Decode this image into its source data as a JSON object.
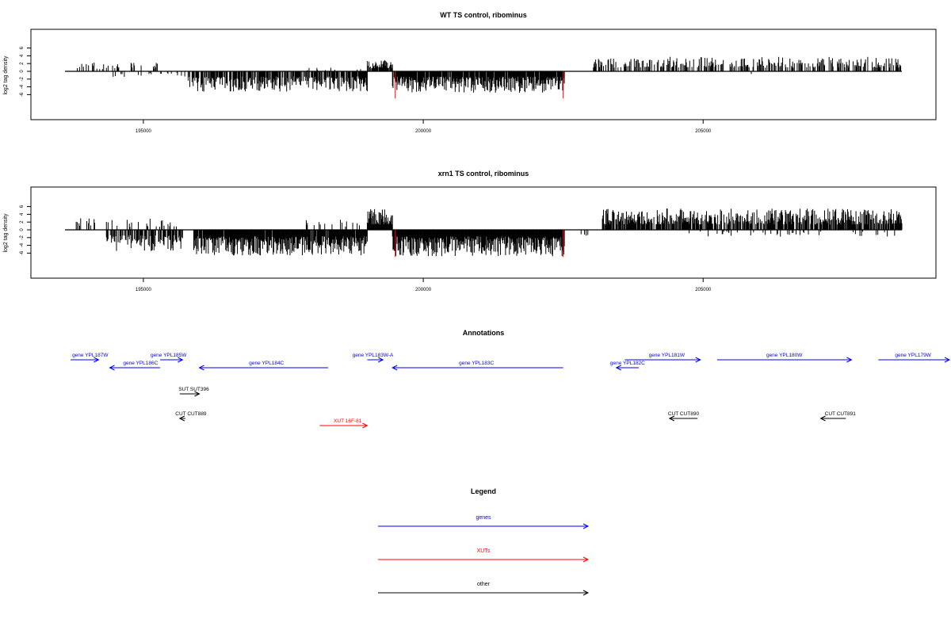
{
  "chart_data": [
    {
      "type": "bar",
      "title": "WT TS control, ribominus",
      "ylabel": "log2 tag density",
      "xlabel": "",
      "xlim": [
        193400,
        210000
      ],
      "ylim": [
        -7.5,
        6.5
      ],
      "x_ticks": [
        195000,
        200000,
        205000
      ],
      "x_tick_labels": [
        "195000",
        "200000",
        "205000"
      ],
      "y_ticks": [
        -6,
        -4,
        -2,
        0,
        2,
        4,
        6
      ],
      "y_tick_labels": [
        "-6",
        "-4",
        "-2",
        "0",
        "2",
        "4",
        "6"
      ],
      "baseline_x": [
        193600,
        208550
      ],
      "marker_color": "#ff0000",
      "marker_lines": [
        {
          "x": 199500,
          "y0": 0,
          "y1": -7
        },
        {
          "x": 202500,
          "y0": 0,
          "y1": -7
        }
      ],
      "series_colors": {
        "bars": "#000000"
      },
      "regions": [
        {
          "x0": 193750,
          "x1": 195400,
          "sign": 1,
          "max": 2.3,
          "density": 0.2
        },
        {
          "x0": 194300,
          "x1": 195800,
          "sign": -1,
          "max": 1.5,
          "density": 0.08
        },
        {
          "x0": 195800,
          "x1": 199000,
          "sign": -1,
          "max": 5.2,
          "density": 0.75
        },
        {
          "x0": 197900,
          "x1": 199000,
          "sign": 1,
          "max": 1.2,
          "density": 0.1
        },
        {
          "x0": 199000,
          "x1": 199450,
          "sign": 1,
          "max": 3.0,
          "density": 0.8
        },
        {
          "x0": 199450,
          "x1": 202520,
          "sign": -1,
          "max": 5.5,
          "density": 0.9
        },
        {
          "x0": 203000,
          "x1": 208550,
          "sign": 1,
          "max": 3.8,
          "density": 0.45
        },
        {
          "x0": 205000,
          "x1": 207000,
          "sign": -1,
          "max": 1.0,
          "density": 0.02
        }
      ]
    },
    {
      "type": "bar",
      "title": "xrn1 TS control, ribominus",
      "ylabel": "log2 tag density",
      "xlabel": "",
      "xlim": [
        193400,
        210000
      ],
      "ylim": [
        -7.5,
        6.5
      ],
      "x_ticks": [
        195000,
        200000,
        205000
      ],
      "x_tick_labels": [
        "195000",
        "200000",
        "205000"
      ],
      "y_ticks": [
        -6,
        -4,
        -2,
        0,
        2,
        4,
        6
      ],
      "y_tick_labels": [
        "-6",
        "-4",
        "-2",
        "0",
        "2",
        "4",
        "6"
      ],
      "baseline_x": [
        193600,
        208550
      ],
      "marker_color": "#ff0000",
      "marker_lines": [
        {
          "x": 199500,
          "y0": 0,
          "y1": -7
        },
        {
          "x": 202500,
          "y0": 0,
          "y1": -7
        }
      ],
      "series_colors": {
        "bars": "#000000"
      },
      "regions": [
        {
          "x0": 193800,
          "x1": 195600,
          "sign": 1,
          "max": 3.0,
          "density": 0.15
        },
        {
          "x0": 194300,
          "x1": 195700,
          "sign": -1,
          "max": 5.5,
          "density": 0.55
        },
        {
          "x0": 195900,
          "x1": 199000,
          "sign": -1,
          "max": 6.6,
          "density": 0.95
        },
        {
          "x0": 197900,
          "x1": 199000,
          "sign": 1,
          "max": 3.2,
          "density": 0.15
        },
        {
          "x0": 199000,
          "x1": 199450,
          "sign": 1,
          "max": 5.5,
          "density": 1.0
        },
        {
          "x0": 199450,
          "x1": 202520,
          "sign": -1,
          "max": 6.8,
          "density": 1.0
        },
        {
          "x0": 202500,
          "x1": 203000,
          "sign": -1,
          "max": 2.5,
          "density": 0.1
        },
        {
          "x0": 203200,
          "x1": 208550,
          "sign": 1,
          "max": 5.5,
          "density": 0.8
        },
        {
          "x0": 204700,
          "x1": 208550,
          "sign": -1,
          "max": 1.8,
          "density": 0.1
        }
      ]
    }
  ],
  "annotations": {
    "title": "Annotations",
    "features": [
      {
        "label": "gene YPL187W",
        "x0": 193700,
        "x1": 194200,
        "dir": "right",
        "row": 1,
        "color": "#0000ff",
        "label_x": 194050
      },
      {
        "label": "gene YPL185W",
        "x0": 195300,
        "x1": 195700,
        "dir": "right",
        "row": 1,
        "color": "#0000ff",
        "label_x": 195450
      },
      {
        "label": "gene YPL186C",
        "x0": 194400,
        "x1": 195300,
        "dir": "left",
        "row": 2,
        "color": "#0000ff",
        "label_x": 194950
      },
      {
        "label": "gene YPL184C",
        "x0": 196000,
        "x1": 198300,
        "dir": "left",
        "row": 2,
        "color": "#0000ff",
        "label_x": 197200
      },
      {
        "label": "gene YPL183W-A",
        "x0": 199000,
        "x1": 199280,
        "dir": "right",
        "row": 1,
        "color": "#0000ff",
        "label_x": 199100
      },
      {
        "label": "gene YPL183C",
        "x0": 199450,
        "x1": 202500,
        "dir": "left",
        "row": 2,
        "color": "#0000ff",
        "label_x": 200950
      },
      {
        "label": "gene YPL182C",
        "x0": 203450,
        "x1": 203850,
        "dir": "left",
        "row": 2,
        "color": "#0000ff",
        "label_x": 203650
      },
      {
        "label": "gene YPL181W",
        "x0": 203600,
        "x1": 204950,
        "dir": "right",
        "row": 1,
        "color": "#0000ff",
        "label_x": 204350
      },
      {
        "label": "gene YPL180W",
        "x0": 205250,
        "x1": 207650,
        "dir": "right",
        "row": 1,
        "color": "#0000ff",
        "label_x": 206450
      },
      {
        "label": "gene YPL179W",
        "x0": 208130,
        "x1": 210200,
        "dir": "right",
        "row": 1,
        "color": "#0000ff",
        "label_x": 208750
      },
      {
        "label": "SUT SUT396",
        "x0": 195650,
        "x1": 196000,
        "dir": "right",
        "row": 3,
        "color": "#000000",
        "label_x": 195900
      },
      {
        "label": "CUT CUT889",
        "x0": 195650,
        "x1": 195750,
        "dir": "left",
        "row": 4,
        "color": "#000000",
        "label_x": 195850
      },
      {
        "label": "XUT 16F-81",
        "x0": 198150,
        "x1": 199000,
        "dir": "right",
        "row": 5,
        "color": "#ff0000",
        "label_x": 198650
      },
      {
        "label": "CUT CUT890",
        "x0": 204400,
        "x1": 204900,
        "dir": "left",
        "row": 4,
        "color": "#000000",
        "label_x": 204650
      },
      {
        "label": "CUT CUT891",
        "x0": 207100,
        "x1": 207550,
        "dir": "left",
        "row": 4,
        "color": "#000000",
        "label_x": 207450
      }
    ]
  },
  "legend": {
    "title": "Legend",
    "items": [
      {
        "label": "genes",
        "color": "#0000ff"
      },
      {
        "label": "XUTs",
        "color": "#ff0000"
      },
      {
        "label": "other",
        "color": "#000000"
      }
    ]
  }
}
